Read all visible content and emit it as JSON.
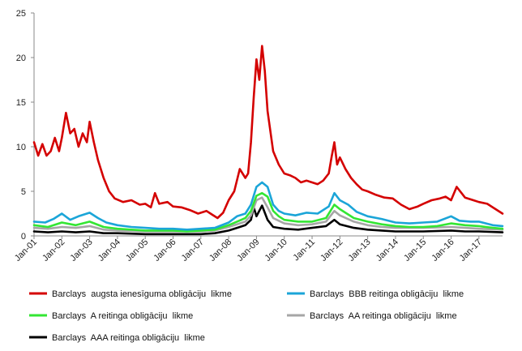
{
  "chart_data": {
    "type": "line",
    "title": "",
    "xlabel": "",
    "ylabel": "",
    "ylim": [
      0,
      25
    ],
    "yticks": [
      0,
      5,
      10,
      15,
      20,
      25
    ],
    "xlim": [
      2001.0,
      2017.85
    ],
    "x_tick_labels": [
      "Jan-01",
      "Jan-02",
      "Jan-03",
      "Jan-04",
      "Jan-05",
      "Jan-06",
      "Jan-07",
      "Jan-08",
      "Jan-09",
      "Jan-10",
      "Jan-11",
      "Jan-12",
      "Jan-13",
      "Jan-14",
      "Jan-15",
      "Jan-16",
      "Jan-17"
    ],
    "grid": false,
    "legend_position": "bottom",
    "series": [
      {
        "name": "Barclays  augsta ienesīguma obligāciju  likme",
        "color": "#d40000",
        "x": [
          2001.0,
          2001.15,
          2001.3,
          2001.45,
          2001.6,
          2001.75,
          2001.9,
          2002.0,
          2002.15,
          2002.3,
          2002.45,
          2002.6,
          2002.75,
          2002.9,
          2003.0,
          2003.15,
          2003.3,
          2003.5,
          2003.7,
          2003.9,
          2004.2,
          2004.5,
          2004.8,
          2005.0,
          2005.2,
          2005.35,
          2005.5,
          2005.8,
          2006.0,
          2006.3,
          2006.6,
          2006.9,
          2007.2,
          2007.4,
          2007.6,
          2007.8,
          2008.0,
          2008.2,
          2008.4,
          2008.6,
          2008.7,
          2008.8,
          2008.9,
          2009.0,
          2009.1,
          2009.2,
          2009.3,
          2009.4,
          2009.6,
          2009.8,
          2010.0,
          2010.2,
          2010.4,
          2010.6,
          2010.8,
          2011.0,
          2011.2,
          2011.4,
          2011.6,
          2011.7,
          2011.8,
          2011.9,
          2012.0,
          2012.2,
          2012.4,
          2012.6,
          2012.8,
          2013.0,
          2013.3,
          2013.6,
          2013.9,
          2014.2,
          2014.5,
          2014.8,
          2015.0,
          2015.3,
          2015.6,
          2015.8,
          2016.0,
          2016.2,
          2016.5,
          2016.8,
          2017.0,
          2017.3,
          2017.6,
          2017.85
        ],
        "y": [
          10.5,
          9.0,
          10.3,
          9.0,
          9.5,
          11.0,
          9.5,
          11.0,
          13.8,
          11.5,
          12.0,
          10.0,
          11.5,
          10.5,
          12.8,
          10.5,
          8.5,
          6.5,
          5.0,
          4.2,
          3.8,
          4.0,
          3.5,
          3.6,
          3.2,
          4.8,
          3.6,
          3.8,
          3.3,
          3.2,
          2.9,
          2.5,
          2.8,
          2.4,
          2.0,
          2.6,
          4.0,
          5.0,
          7.5,
          6.5,
          7.0,
          10.5,
          15.5,
          19.8,
          17.5,
          21.3,
          18.5,
          14.0,
          9.5,
          8.0,
          7.0,
          6.8,
          6.5,
          6.0,
          6.2,
          6.0,
          5.8,
          6.2,
          7.0,
          8.8,
          10.5,
          8.0,
          8.8,
          7.5,
          6.5,
          5.8,
          5.2,
          5.0,
          4.6,
          4.3,
          4.2,
          3.5,
          3.0,
          3.3,
          3.6,
          4.0,
          4.2,
          4.4,
          4.0,
          5.5,
          4.3,
          4.0,
          3.8,
          3.6,
          3.0,
          2.5
        ]
      },
      {
        "name": "Barclays  BBB reitinga obligāciju  likme",
        "color": "#1ba5d8",
        "x": [
          2001.0,
          2001.4,
          2001.7,
          2002.0,
          2002.3,
          2002.6,
          2003.0,
          2003.3,
          2003.6,
          2004.0,
          2004.5,
          2005.0,
          2005.5,
          2006.0,
          2006.5,
          2007.0,
          2007.5,
          2008.0,
          2008.3,
          2008.6,
          2008.8,
          2009.0,
          2009.2,
          2009.4,
          2009.6,
          2009.8,
          2010.0,
          2010.4,
          2010.8,
          2011.2,
          2011.6,
          2011.8,
          2012.0,
          2012.3,
          2012.6,
          2013.0,
          2013.5,
          2014.0,
          2014.5,
          2015.0,
          2015.5,
          2016.0,
          2016.3,
          2016.7,
          2017.0,
          2017.5,
          2017.85
        ],
        "y": [
          1.6,
          1.5,
          1.9,
          2.5,
          1.8,
          2.2,
          2.6,
          2.0,
          1.5,
          1.2,
          1.0,
          0.9,
          0.8,
          0.8,
          0.7,
          0.8,
          0.9,
          1.5,
          2.2,
          2.5,
          3.5,
          5.5,
          6.0,
          5.5,
          3.5,
          2.8,
          2.5,
          2.3,
          2.6,
          2.5,
          3.3,
          4.8,
          4.0,
          3.5,
          2.7,
          2.2,
          1.9,
          1.5,
          1.4,
          1.5,
          1.6,
          2.2,
          1.7,
          1.6,
          1.6,
          1.2,
          1.1
        ]
      },
      {
        "name": "Barclays  A reitinga obligāciju  likme",
        "color": "#33e633",
        "x": [
          2001.0,
          2001.5,
          2002.0,
          2002.5,
          2003.0,
          2003.5,
          2004.0,
          2004.5,
          2005.0,
          2005.5,
          2006.0,
          2006.5,
          2007.0,
          2007.5,
          2008.0,
          2008.3,
          2008.6,
          2008.8,
          2009.0,
          2009.2,
          2009.4,
          2009.6,
          2009.8,
          2010.0,
          2010.5,
          2011.0,
          2011.5,
          2011.8,
          2012.0,
          2012.5,
          2013.0,
          2013.5,
          2014.0,
          2014.5,
          2015.0,
          2015.5,
          2016.0,
          2016.5,
          2017.0,
          2017.5,
          2017.85
        ],
        "y": [
          1.2,
          1.0,
          1.5,
          1.2,
          1.6,
          1.0,
          0.8,
          0.7,
          0.6,
          0.6,
          0.6,
          0.5,
          0.6,
          0.7,
          1.2,
          1.6,
          2.0,
          2.8,
          4.5,
          4.8,
          4.4,
          2.8,
          2.2,
          1.8,
          1.6,
          1.6,
          2.0,
          3.5,
          3.0,
          2.0,
          1.6,
          1.3,
          1.1,
          1.0,
          1.0,
          1.1,
          1.4,
          1.2,
          1.1,
          0.9,
          0.8
        ]
      },
      {
        "name": "Barclays  AA reitinga obligāciju  likme",
        "color": "#a6a6a6",
        "x": [
          2001.0,
          2001.5,
          2002.0,
          2002.5,
          2003.0,
          2003.5,
          2004.0,
          2005.0,
          2006.0,
          2007.0,
          2007.5,
          2008.0,
          2008.3,
          2008.6,
          2008.8,
          2009.0,
          2009.2,
          2009.4,
          2009.6,
          2009.8,
          2010.0,
          2010.5,
          2011.0,
          2011.5,
          2011.8,
          2012.0,
          2012.5,
          2013.0,
          2013.5,
          2014.0,
          2015.0,
          2016.0,
          2016.5,
          2017.0,
          2017.85
        ],
        "y": [
          0.9,
          0.8,
          1.0,
          0.9,
          1.1,
          0.7,
          0.6,
          0.5,
          0.5,
          0.5,
          0.6,
          1.0,
          1.3,
          1.6,
          2.3,
          4.0,
          4.3,
          3.2,
          2.0,
          1.7,
          1.4,
          1.2,
          1.3,
          1.6,
          2.8,
          2.3,
          1.6,
          1.2,
          1.0,
          0.9,
          0.9,
          1.0,
          0.9,
          0.8,
          0.7
        ]
      },
      {
        "name": "Barclays  AAA reitinga obligāciju  likme",
        "color": "#000000",
        "x": [
          2001.0,
          2001.5,
          2002.0,
          2002.5,
          2003.0,
          2003.5,
          2004.0,
          2005.0,
          2006.0,
          2007.0,
          2007.5,
          2008.0,
          2008.3,
          2008.6,
          2008.8,
          2008.9,
          2009.0,
          2009.2,
          2009.4,
          2009.6,
          2009.8,
          2010.0,
          2010.5,
          2011.0,
          2011.5,
          2011.8,
          2012.0,
          2012.5,
          2013.0,
          2013.5,
          2014.0,
          2015.0,
          2016.0,
          2016.5,
          2017.0,
          2017.85
        ],
        "y": [
          0.5,
          0.4,
          0.5,
          0.4,
          0.5,
          0.3,
          0.3,
          0.2,
          0.2,
          0.2,
          0.3,
          0.6,
          0.9,
          1.2,
          1.8,
          3.2,
          2.2,
          3.4,
          1.8,
          1.0,
          0.9,
          0.8,
          0.7,
          0.9,
          1.1,
          1.8,
          1.3,
          0.9,
          0.7,
          0.6,
          0.5,
          0.5,
          0.6,
          0.5,
          0.5,
          0.4
        ]
      }
    ]
  }
}
